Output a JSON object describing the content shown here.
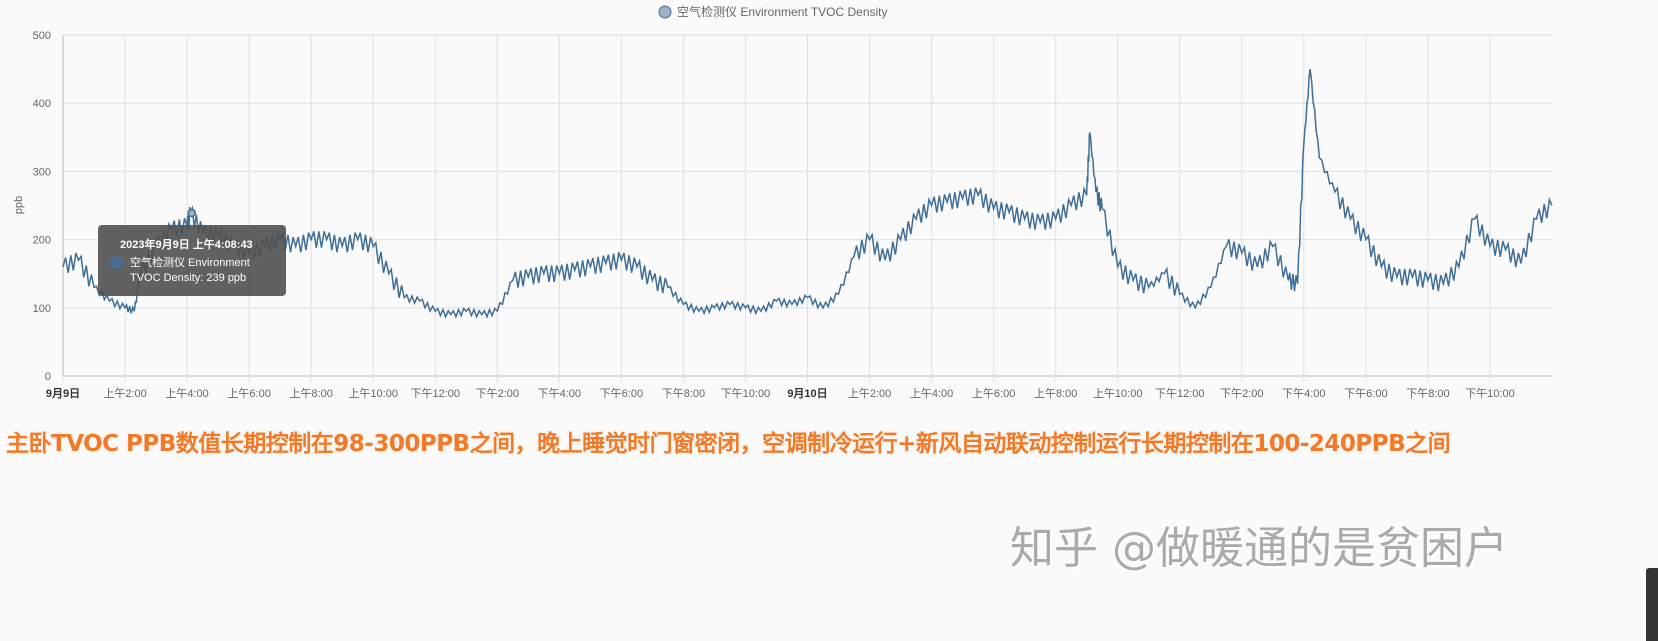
{
  "chart_data": {
    "type": "line",
    "legend": "空气检测仪 Environment TVOC Density",
    "legend_position": "top-center",
    "ylabel": "ppb",
    "ylim": [
      0,
      500
    ],
    "yticks": [
      0,
      100,
      200,
      300,
      400,
      500
    ],
    "xlim_hours": [
      0,
      48
    ],
    "xticks": [
      "9月9日",
      "上午2:00",
      "上午4:00",
      "上午6:00",
      "上午8:00",
      "上午10:00",
      "下午12:00",
      "下午2:00",
      "下午4:00",
      "下午6:00",
      "下午8:00",
      "下午10:00",
      "9月10日",
      "上午2:00",
      "上午4:00",
      "上午6:00",
      "上午8:00",
      "上午10:00",
      "下午12:00",
      "下午2:00",
      "下午4:00",
      "下午6:00",
      "下午8:00",
      "下午10:00"
    ],
    "grid": true,
    "color": "#3f6e96",
    "x_hours": [
      0,
      0.5,
      1,
      1.5,
      2,
      2.3,
      2.5,
      3,
      3.5,
      4,
      4.1,
      4.5,
      5,
      5.5,
      6,
      6.5,
      7,
      7.5,
      8,
      8.5,
      9,
      9.5,
      10,
      10.5,
      11,
      11.5,
      12,
      12.5,
      13,
      13.5,
      14,
      14.5,
      15,
      15.5,
      16,
      16.5,
      17,
      17.5,
      18,
      18.5,
      19,
      19.5,
      20,
      20.5,
      21,
      21.5,
      22,
      22.5,
      23,
      23.5,
      24,
      24.5,
      25,
      25.5,
      26,
      26.5,
      27,
      27.5,
      28,
      28.5,
      29,
      29.5,
      30,
      30.5,
      31,
      31.5,
      32,
      32.5,
      33,
      33.1,
      33.3,
      33.5,
      34,
      34.5,
      35,
      35.5,
      36,
      36.5,
      37,
      37.5,
      38,
      38.5,
      39,
      39.5,
      39.8,
      40,
      40.2,
      40.5,
      41,
      41.5,
      42,
      42.5,
      43,
      43.5,
      44,
      44.5,
      45,
      45.5,
      46,
      46.5,
      47,
      47.5,
      48
    ],
    "values": [
      160,
      170,
      130,
      110,
      100,
      95,
      150,
      190,
      215,
      220,
      239,
      210,
      205,
      190,
      180,
      190,
      200,
      190,
      200,
      200,
      190,
      200,
      190,
      150,
      115,
      110,
      95,
      90,
      95,
      90,
      95,
      140,
      145,
      150,
      150,
      155,
      160,
      165,
      170,
      160,
      140,
      130,
      105,
      95,
      100,
      105,
      100,
      95,
      110,
      105,
      115,
      100,
      120,
      175,
      200,
      170,
      200,
      230,
      250,
      255,
      260,
      265,
      245,
      240,
      230,
      225,
      230,
      250,
      265,
      357,
      270,
      245,
      160,
      140,
      130,
      150,
      120,
      100,
      130,
      190,
      180,
      160,
      190,
      140,
      135,
      340,
      450,
      320,
      270,
      230,
      200,
      160,
      145,
      145,
      140,
      135,
      160,
      230,
      190,
      185,
      165,
      230,
      250
    ],
    "tooltip": {
      "title": "2023年9月9日 上午4:08:43",
      "label": "空气检测仪 Environment",
      "value": "TVOC Density: 239 ppb",
      "x_hour": 4.15,
      "y": 239
    }
  },
  "caption": "主卧TVOC PPB数值长期控制在98-300PPB之间，晚上睡觉时门窗密闭，空调制冷运行+新风自动联动控制运行长期控制在100-240PPB之间",
  "watermark": "知乎 @做暖通的是贫困户"
}
